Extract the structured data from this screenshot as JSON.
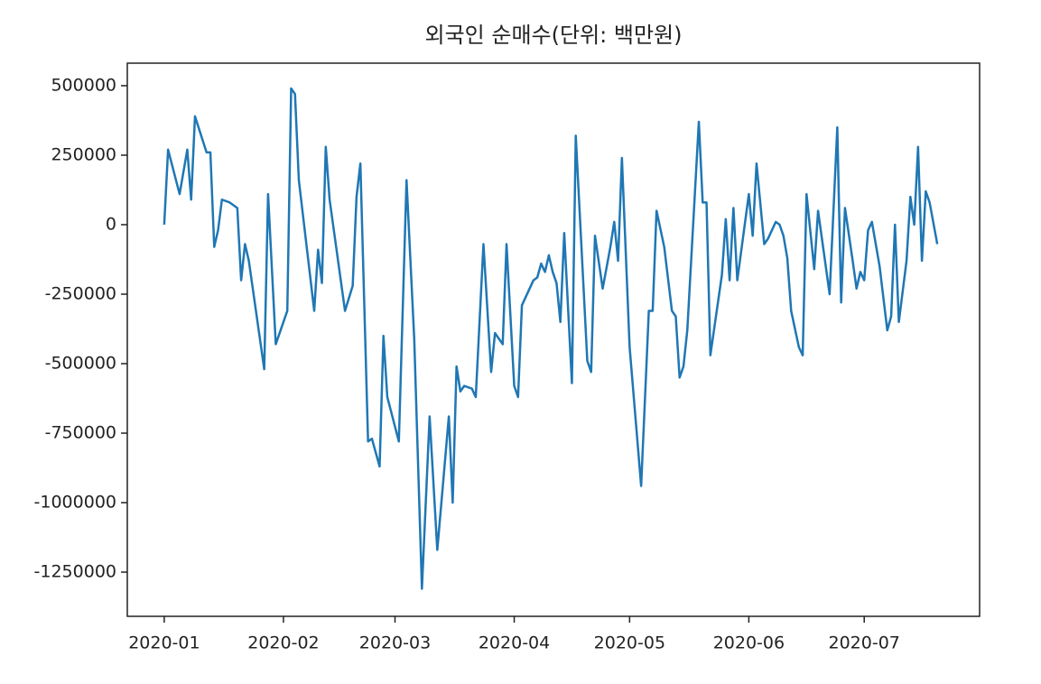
{
  "chart_data": {
    "type": "line",
    "title": "외국인 순매수(단위: 백만원)",
    "x": [
      0,
      1,
      4,
      6,
      7,
      8,
      11,
      12,
      13,
      14,
      15,
      17,
      19,
      20,
      21,
      22,
      26,
      27,
      29,
      32,
      33,
      34,
      35,
      39,
      40,
      41,
      42,
      43,
      47,
      49,
      50,
      51,
      53,
      54,
      56,
      57,
      58,
      61,
      63,
      65,
      66,
      67,
      69,
      71,
      74,
      75,
      76,
      77,
      78,
      80,
      81,
      83,
      85,
      86,
      88,
      89,
      91,
      92,
      93,
      96,
      97,
      98,
      99,
      100,
      101,
      102,
      103,
      104,
      106,
      107,
      110,
      111,
      112,
      114,
      116,
      117,
      118,
      119,
      121,
      124,
      126,
      127,
      128,
      130,
      132,
      133,
      134,
      135,
      136,
      139,
      140,
      141,
      142,
      145,
      146,
      147,
      148,
      149,
      152,
      153,
      154,
      156,
      157,
      159,
      160,
      161,
      162,
      163,
      165,
      166,
      167,
      169,
      170,
      173,
      175,
      176,
      177,
      179,
      180,
      181,
      182,
      183,
      184,
      186,
      188,
      189,
      190,
      191,
      193,
      194,
      195,
      196,
      197,
      198,
      199,
      201
    ],
    "series": [
      {
        "color": "#1f77b4",
        "values": [
          0,
          270000,
          110000,
          270000,
          90000,
          390000,
          260000,
          260000,
          -80000,
          -20000,
          90000,
          80000,
          60000,
          -200000,
          -70000,
          -130000,
          -520000,
          110000,
          -430000,
          -310000,
          490000,
          470000,
          160000,
          -310000,
          -90000,
          -210000,
          280000,
          90000,
          -310000,
          -220000,
          100000,
          220000,
          -780000,
          -770000,
          -870000,
          -400000,
          -620000,
          -780000,
          160000,
          -410000,
          -860000,
          -1310000,
          -690000,
          -1170000,
          -690000,
          -1000000,
          -510000,
          -600000,
          -580000,
          -590000,
          -620000,
          -70000,
          -530000,
          -390000,
          -430000,
          -70000,
          -580000,
          -620000,
          -290000,
          -200000,
          -190000,
          -140000,
          -170000,
          -110000,
          -170000,
          -210000,
          -350000,
          -30000,
          -570000,
          320000,
          -490000,
          -530000,
          -40000,
          -230000,
          -80000,
          10000,
          -130000,
          240000,
          -440000,
          -940000,
          -310000,
          -310000,
          50000,
          -80000,
          -310000,
          -330000,
          -550000,
          -510000,
          -380000,
          370000,
          80000,
          80000,
          -470000,
          -180000,
          20000,
          -200000,
          60000,
          -200000,
          110000,
          -40000,
          220000,
          -70000,
          -50000,
          10000,
          0,
          -40000,
          -120000,
          -310000,
          -440000,
          -470000,
          110000,
          -160000,
          50000,
          -250000,
          350000,
          -280000,
          60000,
          -130000,
          -230000,
          -170000,
          -200000,
          -20000,
          10000,
          -150000,
          -380000,
          -330000,
          0,
          -350000,
          -130000,
          100000,
          0,
          280000,
          -130000,
          120000,
          80000,
          -70000
        ]
      }
    ],
    "xlim": [
      -9.6,
      212
    ],
    "xticks": [
      {
        "value": 0,
        "label": "2020-01"
      },
      {
        "value": 31,
        "label": "2020-02"
      },
      {
        "value": 60,
        "label": "2020-03"
      },
      {
        "value": 91,
        "label": "2020-04"
      },
      {
        "value": 121,
        "label": "2020-05"
      },
      {
        "value": 152,
        "label": "2020-06"
      },
      {
        "value": 182,
        "label": "2020-07"
      }
    ],
    "ylim": [
      -1409000,
      581000
    ],
    "yticks": [
      500000,
      250000,
      0,
      -250000,
      -500000,
      -750000,
      -1000000,
      -1250000
    ]
  }
}
